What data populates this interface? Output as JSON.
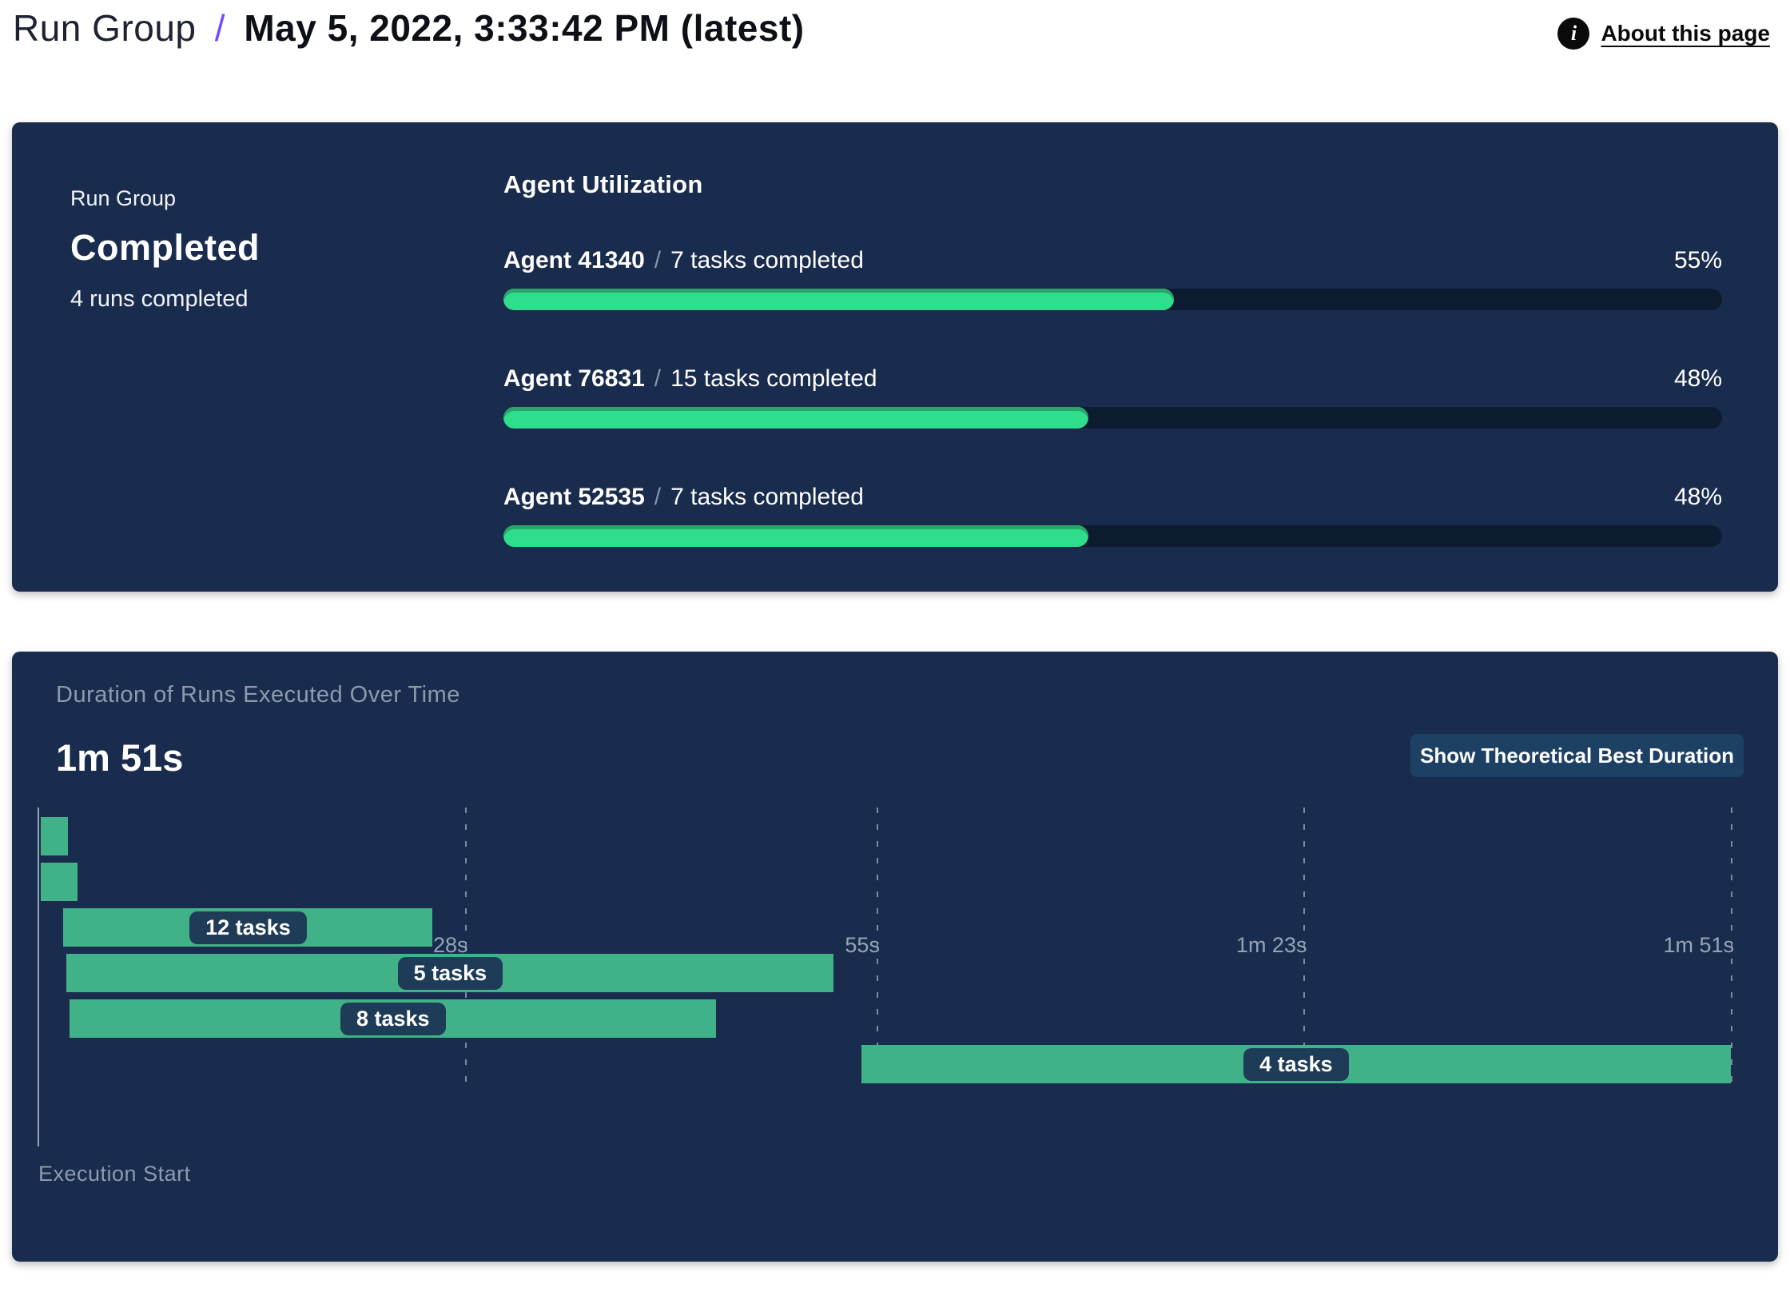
{
  "header": {
    "title_prefix": "Run Group",
    "separator": "/",
    "title_date": "May 5, 2022, 3:33:42 PM (latest)",
    "info_icon": "i",
    "about_link": "About this page"
  },
  "status_card": {
    "label": "Run Group",
    "status": "Completed",
    "runs_summary": "4 runs completed"
  },
  "agent_utilization": {
    "title": "Agent Utilization",
    "separator": "/",
    "agents": [
      {
        "name": "Agent 41340",
        "tasks": "7 tasks completed",
        "percent": 55
      },
      {
        "name": "Agent 76831",
        "tasks": "15 tasks completed",
        "percent": 48
      },
      {
        "name": "Agent 52535",
        "tasks": "7 tasks completed",
        "percent": 48
      }
    ]
  },
  "duration_panel": {
    "subtitle": "Duration of Runs Executed Over Time",
    "total_duration": "1m 51s",
    "button_label": "Show Theoretical Best Duration",
    "execution_start_label": "Execution Start"
  },
  "chart_data": {
    "type": "bar",
    "variant": "gantt-timeline",
    "title": "Duration of Runs Executed Over Time",
    "xlabel": "Execution Start",
    "total_seconds": 111,
    "x_ticks": [
      {
        "label": "28s",
        "seconds": 28
      },
      {
        "label": "55s",
        "seconds": 55
      },
      {
        "label": "1m 23s",
        "seconds": 83
      },
      {
        "label": "1m 51s",
        "seconds": 111
      }
    ],
    "bars": [
      {
        "label": "",
        "start_s": 0.2,
        "end_s": 2.0
      },
      {
        "label": "",
        "start_s": 0.2,
        "end_s": 2.6
      },
      {
        "label": "12 tasks",
        "start_s": 1.7,
        "end_s": 25.9
      },
      {
        "label": "5 tasks",
        "start_s": 1.9,
        "end_s": 52.2
      },
      {
        "label": "8 tasks",
        "start_s": 2.1,
        "end_s": 44.5
      },
      {
        "label": "4 tasks",
        "start_s": 54.0,
        "end_s": 111.0
      }
    ],
    "grid": true,
    "legend": false
  },
  "colors": {
    "panel_navy": "#1a2c4e",
    "track_navy": "#0d1b30",
    "progress_green": "#2ede8c",
    "progress_green_shade": "#29a express",
    "progress_inset": "#29a56b",
    "gantt_green": "#41b287",
    "pill_navy": "#1e3c58",
    "button_navy": "#1d4164",
    "accent_purple": "#7348ff",
    "muted_text": "#8d9aae"
  }
}
